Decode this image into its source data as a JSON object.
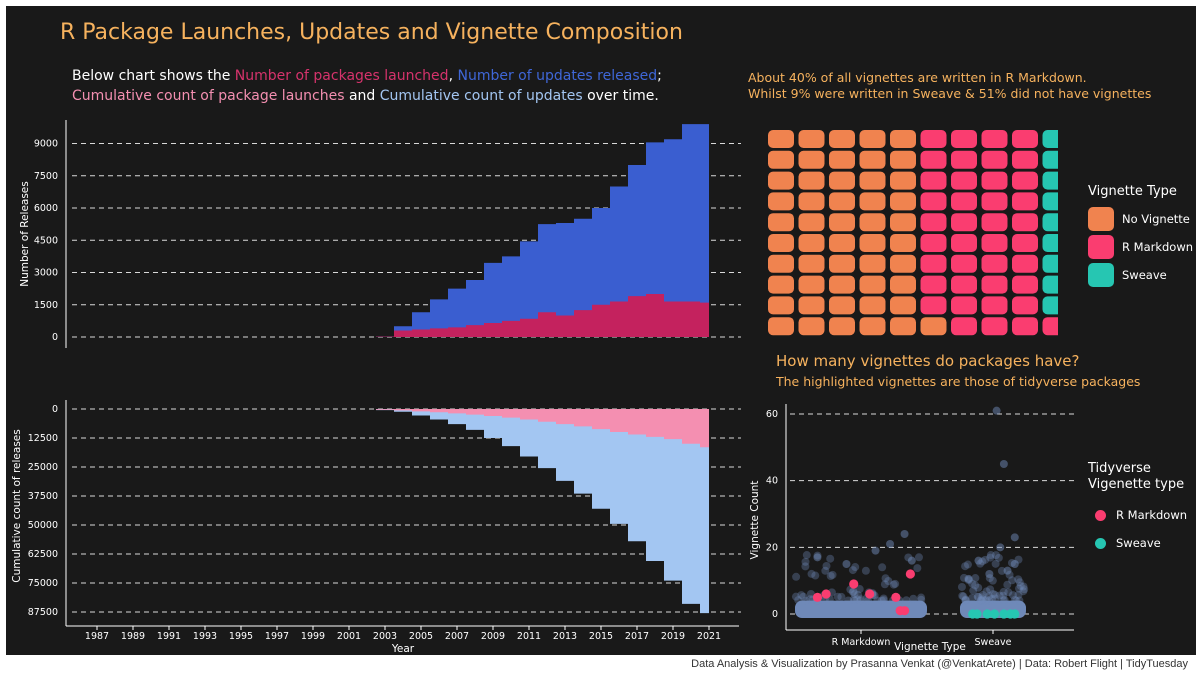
{
  "title": "R Package Launches, Updates and Vignette Composition",
  "intro": {
    "line1": [
      {
        "text": "Below chart shows the ",
        "color": "#ffffff"
      },
      {
        "text": "Number of packages launched",
        "color": "#d6336c"
      },
      {
        "text": ", ",
        "color": "#ffffff"
      },
      {
        "text": "Number of updates released",
        "color": "#3f67d8"
      },
      {
        "text": ";",
        "color": "#ffffff"
      }
    ],
    "line2": [
      {
        "text": "Cumulative count of package launches",
        "color": "#f48fb1"
      },
      {
        "text": " and ",
        "color": "#ffffff"
      },
      {
        "text": "Cumulative count of updates",
        "color": "#a3c6f2"
      },
      {
        "text": " over time.",
        "color": "#ffffff"
      }
    ]
  },
  "waffle_note": {
    "line1": "About 40% of all vignettes are written in R Markdown.",
    "line2": " Whilst 9% were written in Sweave & 51% did not have vignettes"
  },
  "caption": "Data Analysis & Visualization by Prasanna Venkat (@VenkatArete) | Data: Robert Flight | TidyTuesday",
  "chart_data": [
    {
      "type": "area",
      "ylabel": "Number of Releases",
      "ylim": [
        0,
        10000
      ],
      "yticks": [
        0,
        1500,
        3000,
        4500,
        6000,
        7500,
        9000
      ],
      "grid": true,
      "x": [
        1987,
        1988,
        1989,
        1990,
        1991,
        1992,
        1993,
        1994,
        1995,
        1996,
        1997,
        1998,
        1999,
        2000,
        2001,
        2002,
        2003,
        2004,
        2005,
        2006,
        2007,
        2008,
        2009,
        2010,
        2011,
        2012,
        2013,
        2014,
        2015,
        2016,
        2017,
        2018,
        2019,
        2020,
        2021
      ],
      "series": [
        {
          "name": "Number of updates released",
          "color": "#3a5ed0",
          "values": [
            0,
            0,
            0,
            0,
            0,
            0,
            0,
            0,
            0,
            0,
            0,
            0,
            0,
            0,
            0,
            0,
            20,
            500,
            1150,
            1750,
            2250,
            2650,
            3450,
            3750,
            4450,
            5250,
            5300,
            5500,
            6000,
            7000,
            8000,
            9050,
            9200,
            9900,
            9900
          ]
        },
        {
          "name": "Number of packages launched",
          "color": "#c4225e",
          "values": [
            0,
            0,
            0,
            0,
            0,
            0,
            0,
            0,
            0,
            0,
            0,
            0,
            0,
            0,
            0,
            0,
            20,
            300,
            350,
            400,
            450,
            550,
            650,
            750,
            850,
            1150,
            1000,
            1250,
            1500,
            1650,
            1900,
            2000,
            1650,
            1650,
            1600
          ]
        }
      ]
    },
    {
      "type": "area",
      "ylabel": "Cumulative count of releases",
      "xlabel": "Year",
      "ylim": [
        0,
        90000
      ],
      "inverted": true,
      "yticks": [
        0,
        12500,
        25000,
        37500,
        50000,
        62500,
        75000,
        87500
      ],
      "xticks": [
        1987,
        1989,
        1991,
        1993,
        1995,
        1997,
        1999,
        2001,
        2003,
        2005,
        2007,
        2009,
        2011,
        2013,
        2015,
        2017,
        2019,
        2021
      ],
      "grid": true,
      "x": [
        1987,
        1988,
        1989,
        1990,
        1991,
        1992,
        1993,
        1994,
        1995,
        1996,
        1997,
        1998,
        1999,
        2000,
        2001,
        2002,
        2003,
        2004,
        2005,
        2006,
        2007,
        2008,
        2009,
        2010,
        2011,
        2012,
        2013,
        2014,
        2015,
        2016,
        2017,
        2018,
        2019,
        2020,
        2021
      ],
      "series": [
        {
          "name": "Cumulative count of updates",
          "color": "#a3c6f2",
          "values": [
            0,
            0,
            0,
            0,
            0,
            0,
            0,
            0,
            0,
            0,
            0,
            0,
            0,
            0,
            0,
            0,
            500,
            1200,
            2800,
            4500,
            6500,
            9000,
            12500,
            16000,
            20500,
            25500,
            31000,
            36500,
            43000,
            49500,
            57000,
            65500,
            74000,
            84000,
            88000
          ]
        },
        {
          "name": "Cumulative count of package launches",
          "color": "#f48fb1",
          "values": [
            0,
            0,
            0,
            0,
            0,
            0,
            0,
            0,
            0,
            0,
            0,
            0,
            0,
            0,
            0,
            0,
            300,
            600,
            1000,
            1400,
            1900,
            2400,
            3000,
            3700,
            4500,
            5500,
            6500,
            7500,
            8700,
            9900,
            11000,
            12000,
            13000,
            15000,
            16500
          ]
        }
      ]
    },
    {
      "type": "waffle",
      "rows": 10,
      "cols": 10,
      "legend_title": "Vignette Type",
      "categories": [
        "No Vignette",
        "R Markdown",
        "Sweave"
      ],
      "values": [
        51,
        40,
        9
      ],
      "colors": [
        "#f0834f",
        "#fa3d70",
        "#26c6b2"
      ],
      "layout_note": "column-major from bottom-left"
    },
    {
      "type": "scatter",
      "title": "How many vignettes do packages have?",
      "subtitle": "The highlighted vignettes are those of tidyverse packages",
      "xlabel": "Vignette Type",
      "ylabel": "Vignette Count",
      "categories": [
        "R Markdown",
        "Sweave"
      ],
      "ylim": [
        -2,
        63
      ],
      "yticks": [
        0,
        20,
        40,
        60
      ],
      "grid": true,
      "legend_title": "Tidyverse\nVigenette type",
      "legend": [
        {
          "label": "R Markdown",
          "color": "#fa3d70"
        },
        {
          "label": "Sweave",
          "color": "#26c6b2"
        }
      ],
      "base_color": "#6f89b8",
      "outliers": [
        {
          "cat": 1,
          "jitter": 0.3,
          "y": 24
        },
        {
          "cat": 1,
          "jitter": 0.2,
          "y": 21
        },
        {
          "cat": 1,
          "jitter": -0.3,
          "y": 17
        },
        {
          "cat": 1,
          "jitter": 0.1,
          "y": 19
        },
        {
          "cat": 1,
          "jitter": -0.1,
          "y": 15
        },
        {
          "cat": 1,
          "jitter": 0.35,
          "y": 16
        },
        {
          "cat": 2,
          "jitter": 0.05,
          "y": 61
        },
        {
          "cat": 2,
          "jitter": 0.15,
          "y": 45
        },
        {
          "cat": 2,
          "jitter": 0.3,
          "y": 23
        },
        {
          "cat": 2,
          "jitter": 0.1,
          "y": 20
        },
        {
          "cat": 2,
          "jitter": -0.2,
          "y": 16
        },
        {
          "cat": 2,
          "jitter": 0.3,
          "y": 15
        },
        {
          "cat": 2,
          "jitter": 0.2,
          "y": 13
        },
        {
          "cat": 2,
          "jitter": -0.05,
          "y": 12
        }
      ],
      "highlighted": [
        {
          "cat": 1,
          "jitter": -0.3,
          "y": 5,
          "type": "R Markdown"
        },
        {
          "cat": 1,
          "jitter": -0.24,
          "y": 6,
          "type": "R Markdown"
        },
        {
          "cat": 1,
          "jitter": -0.05,
          "y": 9,
          "type": "R Markdown"
        },
        {
          "cat": 1,
          "jitter": 0.06,
          "y": 6,
          "type": "R Markdown"
        },
        {
          "cat": 1,
          "jitter": 0.24,
          "y": 5,
          "type": "R Markdown"
        },
        {
          "cat": 1,
          "jitter": 0.27,
          "y": 1,
          "type": "R Markdown"
        },
        {
          "cat": 1,
          "jitter": 0.3,
          "y": 1,
          "type": "R Markdown"
        },
        {
          "cat": 1,
          "jitter": 0.34,
          "y": 12,
          "type": "R Markdown"
        },
        {
          "cat": 2,
          "jitter": -0.28,
          "y": 0,
          "type": "Sweave"
        },
        {
          "cat": 2,
          "jitter": -0.22,
          "y": 0,
          "type": "Sweave"
        },
        {
          "cat": 2,
          "jitter": -0.08,
          "y": 0,
          "type": "Sweave"
        },
        {
          "cat": 2,
          "jitter": 0.02,
          "y": 0,
          "type": "Sweave"
        },
        {
          "cat": 2,
          "jitter": 0.15,
          "y": 0,
          "type": "Sweave"
        },
        {
          "cat": 2,
          "jitter": 0.24,
          "y": 0,
          "type": "Sweave"
        },
        {
          "cat": 2,
          "jitter": 0.3,
          "y": 0,
          "type": "Sweave"
        }
      ]
    }
  ]
}
